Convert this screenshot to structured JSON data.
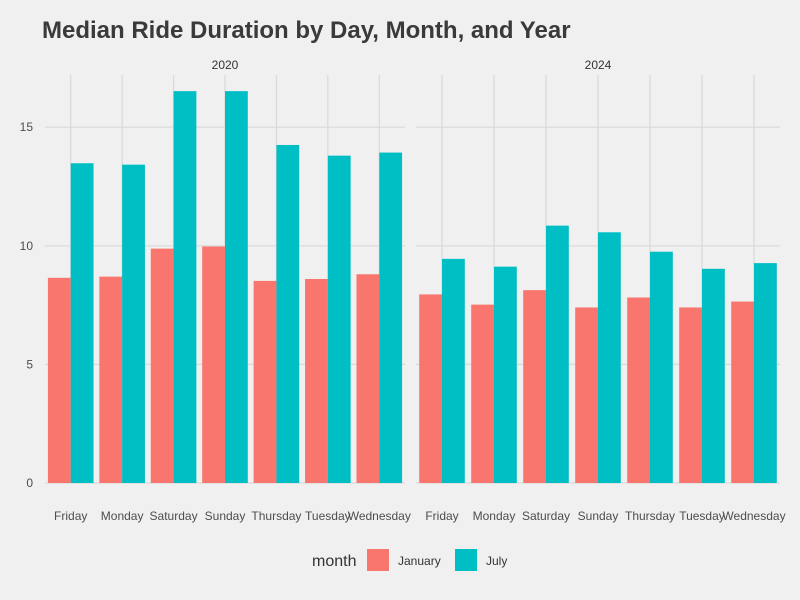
{
  "chart_data": {
    "type": "bar",
    "title": "Median Ride Duration by Day, Month, and Year",
    "xlabel": "",
    "ylabel": "",
    "ylim": [
      0,
      17.2
    ],
    "yticks": [
      0,
      5,
      10,
      15
    ],
    "grid": true,
    "legend_placement": "bottom",
    "legend_title": "month",
    "categories": [
      "Friday",
      "Monday",
      "Saturday",
      "Sunday",
      "Thursday",
      "Tuesday",
      "Wednesday"
    ],
    "colors": {
      "January": "#f8766d",
      "July": "#00bfc4"
    },
    "facets": [
      {
        "label": "2020",
        "series": [
          {
            "name": "January",
            "values": [
              8.65,
              8.7,
              9.88,
              9.97,
              8.52,
              8.6,
              8.8
            ]
          },
          {
            "name": "July",
            "values": [
              13.48,
              13.42,
              16.52,
              16.52,
              14.25,
              13.8,
              13.93
            ]
          }
        ]
      },
      {
        "label": "2024",
        "series": [
          {
            "name": "January",
            "values": [
              7.95,
              7.52,
              8.13,
              7.4,
              7.82,
              7.4,
              7.65
            ]
          },
          {
            "name": "July",
            "values": [
              9.45,
              9.12,
              10.85,
              10.57,
              9.75,
              9.03,
              9.27
            ]
          }
        ]
      }
    ]
  }
}
